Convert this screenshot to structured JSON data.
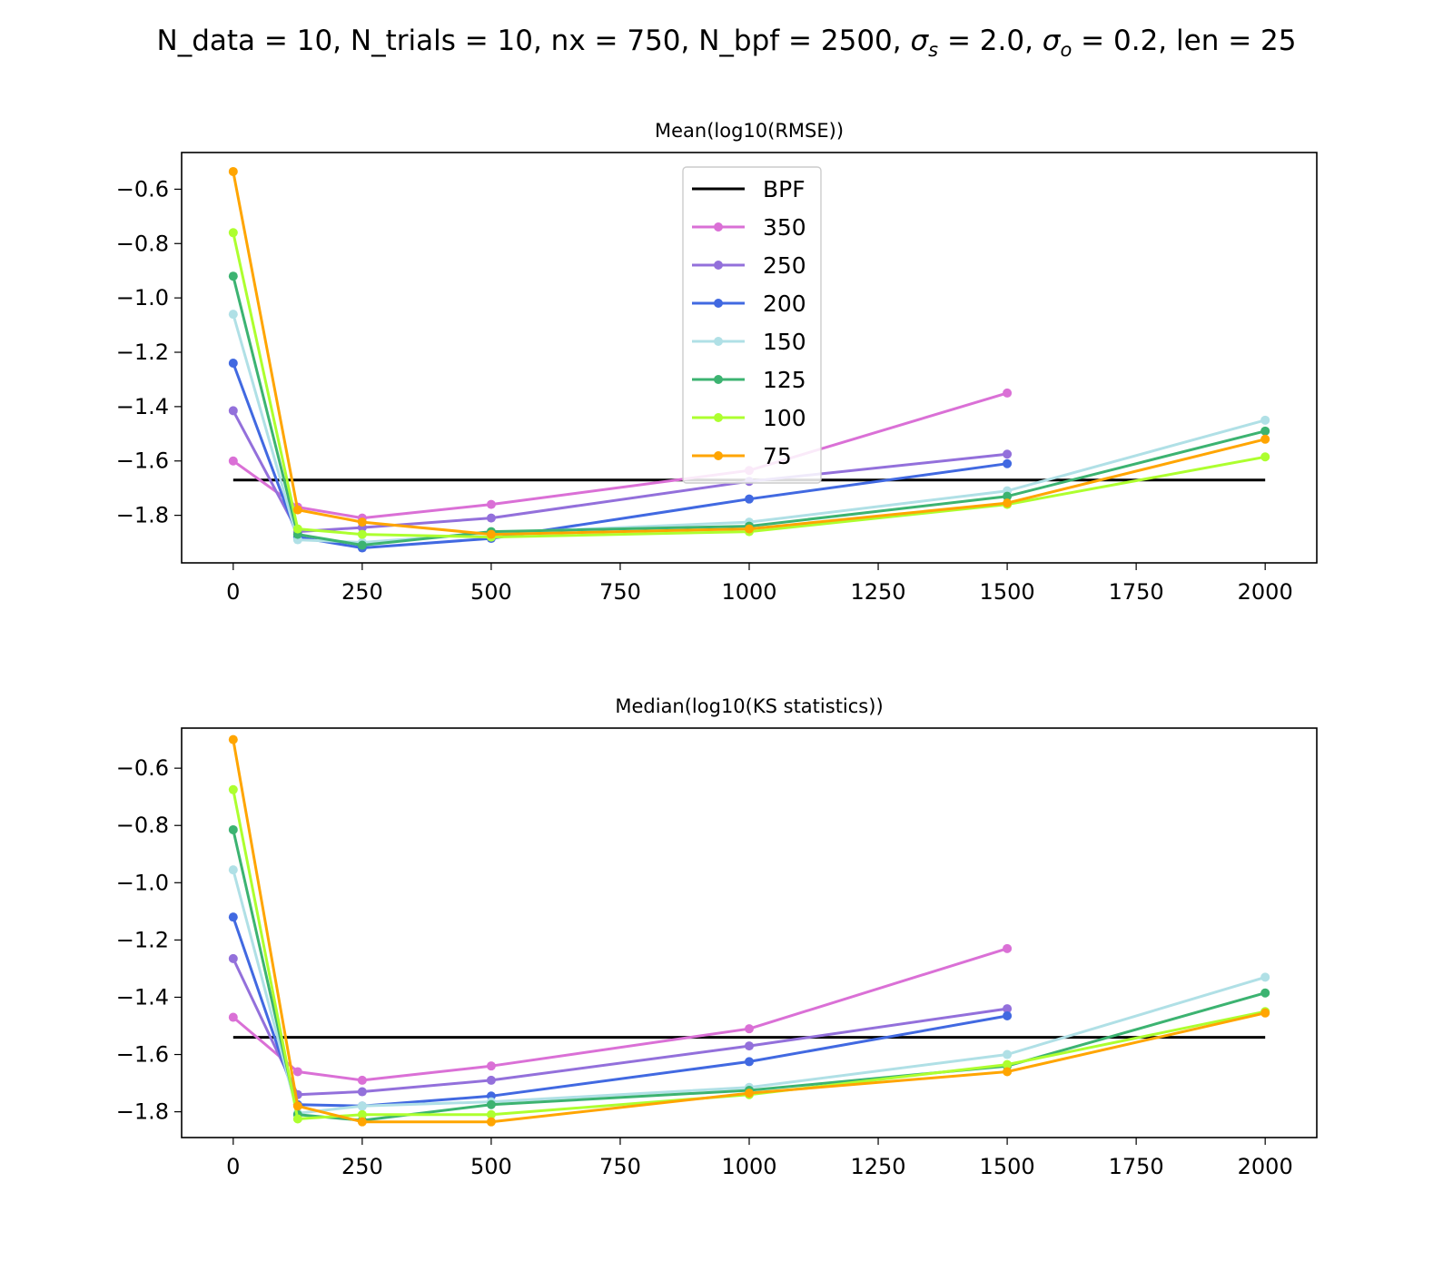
{
  "figure": {
    "title": "N_data = 10, N_trials = 10, nx = 750, N_bpf = 2500, σs = 2.0, σo = 0.2, len = 25",
    "title_parts": {
      "prefix": "N_data = 10, N_trials = 10, nx = 750, N_bpf = 2500, ",
      "sigma_s_sub": "s",
      "sigma_s_value": " = 2.0, ",
      "sigma_o_sub": "o",
      "sigma_o_value": " = 0.2, len = 25"
    }
  },
  "chart_data": [
    {
      "type": "line",
      "title": "Mean(log10(RMSE))",
      "xlabel": "",
      "ylabel": "",
      "xlim": [
        -100,
        2100
      ],
      "ylim": [
        -1.975,
        -0.465
      ],
      "xticks": [
        0,
        250,
        500,
        750,
        1000,
        1250,
        1500,
        1750,
        2000
      ],
      "yticks": [
        -1.8,
        -1.6,
        -1.4,
        -1.2,
        -1.0,
        -0.8,
        -0.6
      ],
      "grid": false,
      "legend": {
        "placement": "top-center"
      },
      "reference": {
        "name": "BPF",
        "color": "#000000",
        "x": [
          0,
          2000
        ],
        "value": -1.67
      },
      "series": [
        {
          "name": "350",
          "color": "#DA70D6",
          "x": [
            0,
            125,
            250,
            500,
            1000,
            1500
          ],
          "y": [
            -1.6,
            -1.77,
            -1.81,
            -1.76,
            -1.635,
            -1.35
          ]
        },
        {
          "name": "250",
          "color": "#9370DB",
          "x": [
            0,
            125,
            250,
            500,
            1000,
            1500
          ],
          "y": [
            -1.415,
            -1.86,
            -1.845,
            -1.81,
            -1.675,
            -1.575
          ]
        },
        {
          "name": "200",
          "color": "#4169E1",
          "x": [
            0,
            125,
            250,
            500,
            1000,
            1500
          ],
          "y": [
            -1.24,
            -1.88,
            -1.92,
            -1.885,
            -1.74,
            -1.61
          ]
        },
        {
          "name": "150",
          "color": "#B0E0E6",
          "x": [
            0,
            125,
            250,
            500,
            1000,
            1500,
            2000
          ],
          "y": [
            -1.06,
            -1.89,
            -1.9,
            -1.865,
            -1.825,
            -1.71,
            -1.45
          ]
        },
        {
          "name": "125",
          "color": "#3CB371",
          "x": [
            0,
            125,
            250,
            500,
            1000,
            1500,
            2000
          ],
          "y": [
            -0.92,
            -1.87,
            -1.91,
            -1.86,
            -1.84,
            -1.73,
            -1.49
          ]
        },
        {
          "name": "100",
          "color": "#ADFF2F",
          "x": [
            0,
            125,
            250,
            500,
            1000,
            1500,
            2000
          ],
          "y": [
            -0.76,
            -1.85,
            -1.87,
            -1.88,
            -1.86,
            -1.76,
            -1.585
          ]
        },
        {
          "name": "75",
          "color": "#FFA500",
          "x": [
            0,
            125,
            250,
            500,
            1000,
            1500,
            2000
          ],
          "y": [
            -0.535,
            -1.78,
            -1.825,
            -1.87,
            -1.85,
            -1.755,
            -1.52
          ]
        }
      ]
    },
    {
      "type": "line",
      "title": "Median(log10(KS statistics))",
      "xlabel": "",
      "ylabel": "",
      "xlim": [
        -100,
        2100
      ],
      "ylim": [
        -1.89,
        -0.46
      ],
      "xticks": [
        0,
        250,
        500,
        750,
        1000,
        1250,
        1500,
        1750,
        2000
      ],
      "yticks": [
        -1.8,
        -1.6,
        -1.4,
        -1.2,
        -1.0,
        -0.8,
        -0.6
      ],
      "grid": false,
      "legend": null,
      "reference": {
        "name": "BPF",
        "color": "#000000",
        "x": [
          0,
          2000
        ],
        "value": -1.54
      },
      "series": [
        {
          "name": "350",
          "color": "#DA70D6",
          "x": [
            0,
            125,
            250,
            500,
            1000,
            1500
          ],
          "y": [
            -1.47,
            -1.66,
            -1.69,
            -1.64,
            -1.51,
            -1.23
          ]
        },
        {
          "name": "250",
          "color": "#9370DB",
          "x": [
            0,
            125,
            250,
            500,
            1000,
            1500
          ],
          "y": [
            -1.265,
            -1.74,
            -1.73,
            -1.69,
            -1.57,
            -1.44
          ]
        },
        {
          "name": "200",
          "color": "#4169E1",
          "x": [
            0,
            125,
            250,
            500,
            1000,
            1500
          ],
          "y": [
            -1.12,
            -1.775,
            -1.78,
            -1.745,
            -1.625,
            -1.465
          ]
        },
        {
          "name": "150",
          "color": "#B0E0E6",
          "x": [
            0,
            125,
            250,
            500,
            1000,
            1500,
            2000
          ],
          "y": [
            -0.955,
            -1.805,
            -1.78,
            -1.765,
            -1.715,
            -1.6,
            -1.33
          ]
        },
        {
          "name": "125",
          "color": "#3CB371",
          "x": [
            0,
            125,
            250,
            500,
            1000,
            1500,
            2000
          ],
          "y": [
            -0.815,
            -1.81,
            -1.83,
            -1.775,
            -1.725,
            -1.64,
            -1.385
          ]
        },
        {
          "name": "100",
          "color": "#ADFF2F",
          "x": [
            0,
            125,
            250,
            500,
            1000,
            1500,
            2000
          ],
          "y": [
            -0.675,
            -1.825,
            -1.81,
            -1.81,
            -1.74,
            -1.635,
            -1.45
          ]
        },
        {
          "name": "75",
          "color": "#FFA500",
          "x": [
            0,
            125,
            250,
            500,
            1000,
            1500,
            2000
          ],
          "y": [
            -0.5,
            -1.78,
            -1.835,
            -1.835,
            -1.735,
            -1.66,
            -1.455
          ]
        }
      ]
    }
  ]
}
